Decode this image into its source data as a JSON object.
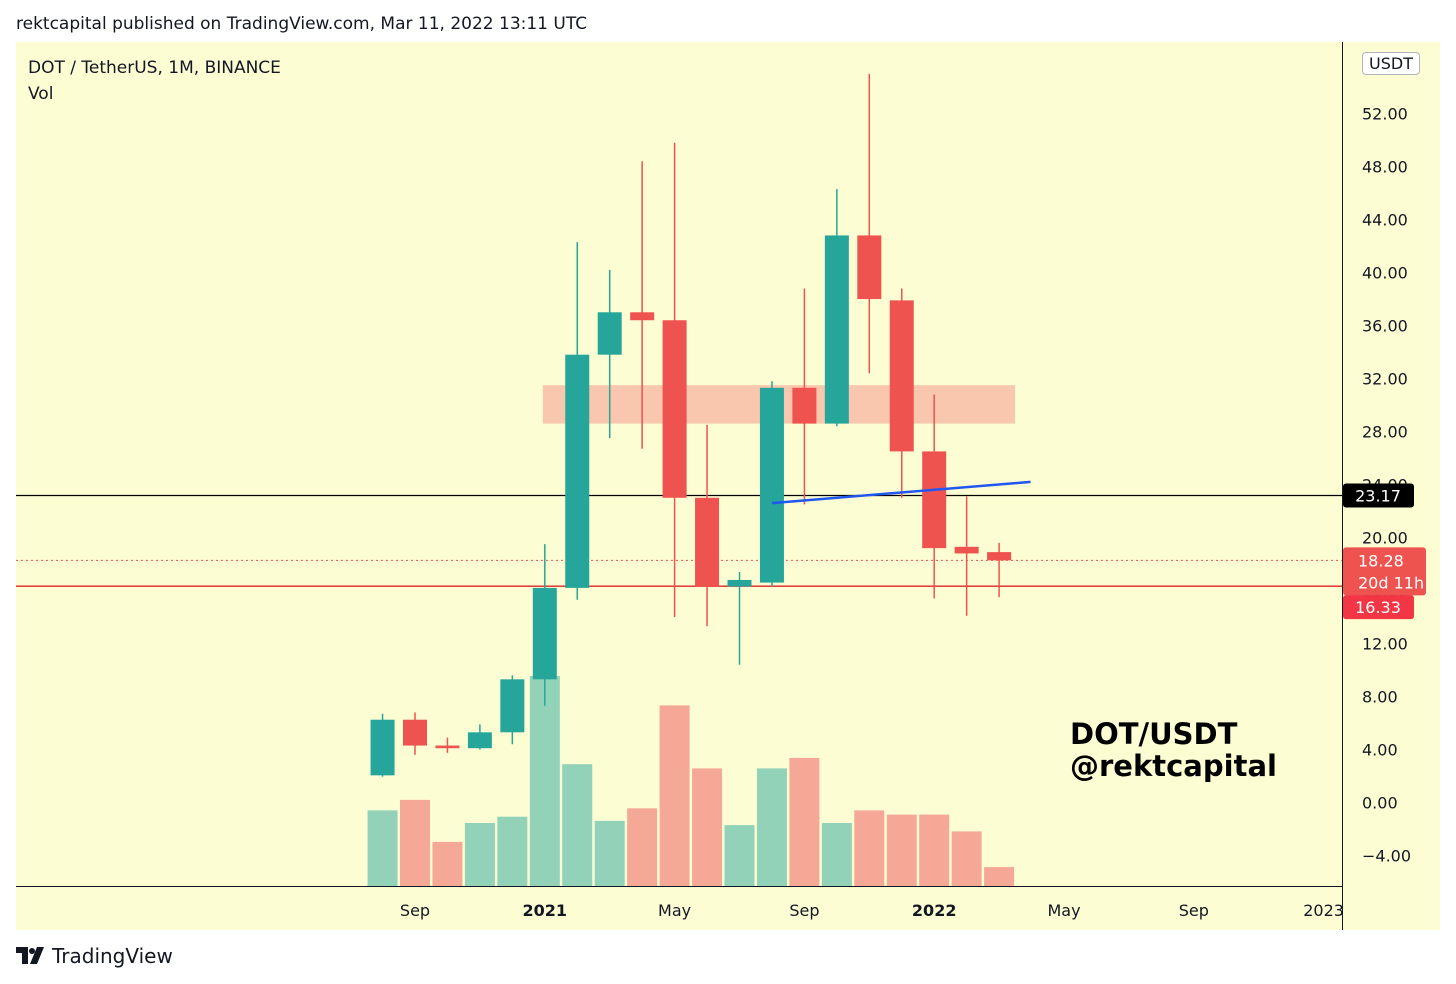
{
  "header": {
    "published": "rektcapital published on TradingView.com, Mar 11, 2022 13:11 UTC"
  },
  "legend": {
    "symbol": "DOT / TetherUS, 1M, BINANCE",
    "volume": "Vol"
  },
  "watermark": {
    "line1": "DOT/USDT",
    "line2": "@rektcapital"
  },
  "currency": "USDT",
  "footer": {
    "brand": "TradingView"
  },
  "colors": {
    "background": "#fdfdd4",
    "up": "#26a69a",
    "down": "#ef5350",
    "up_volume": "#91d2b9",
    "down_volume": "#f5a895",
    "zone": "#f9c6ae",
    "trendline": "#2057f0",
    "level_line": "#000000",
    "support_line": "#e0232a"
  },
  "chart_data": {
    "type": "candlestick",
    "title": "DOT / TetherUS, 1M, BINANCE",
    "y_axis": {
      "ticks": [
        "−4.00",
        "0.00",
        "4.00",
        "8.00",
        "12.00",
        "16.00",
        "20.00",
        "24.00",
        "28.00",
        "32.00",
        "36.00",
        "40.00",
        "44.00",
        "48.00",
        "52.00"
      ],
      "range": [
        -6.3,
        57.4
      ],
      "position": "right"
    },
    "x_axis": {
      "labels": [
        {
          "text": "Sep",
          "month": "2020-09",
          "bold": false
        },
        {
          "text": "2021",
          "month": "2021-01",
          "bold": true
        },
        {
          "text": "May",
          "month": "2021-05",
          "bold": false
        },
        {
          "text": "Sep",
          "month": "2021-09",
          "bold": false
        },
        {
          "text": "2022",
          "month": "2022-01",
          "bold": true
        },
        {
          "text": "May",
          "month": "2022-05",
          "bold": false
        },
        {
          "text": "Sep",
          "month": "2022-09",
          "bold": false
        },
        {
          "text": "2023",
          "month": "2023-01",
          "bold": false
        }
      ]
    },
    "candles": [
      {
        "month": "2020-08",
        "open": 2.05,
        "high": 6.7,
        "low": 1.95,
        "close": 6.25
      },
      {
        "month": "2020-09",
        "open": 6.25,
        "high": 6.8,
        "low": 3.6,
        "close": 4.3
      },
      {
        "month": "2020-10",
        "open": 4.3,
        "high": 4.9,
        "low": 3.75,
        "close": 4.1
      },
      {
        "month": "2020-11",
        "open": 4.1,
        "high": 5.9,
        "low": 4.0,
        "close": 5.3
      },
      {
        "month": "2020-12",
        "open": 5.3,
        "high": 9.6,
        "low": 4.4,
        "close": 9.3
      },
      {
        "month": "2021-01",
        "open": 9.3,
        "high": 19.5,
        "low": 7.3,
        "close": 16.2
      },
      {
        "month": "2021-02",
        "open": 16.2,
        "high": 42.3,
        "low": 15.3,
        "close": 33.8
      },
      {
        "month": "2021-03",
        "open": 33.8,
        "high": 40.2,
        "low": 27.5,
        "close": 37.0
      },
      {
        "month": "2021-04",
        "open": 37.0,
        "high": 48.4,
        "low": 26.7,
        "close": 36.4
      },
      {
        "month": "2021-05",
        "open": 36.4,
        "high": 49.8,
        "low": 14.0,
        "close": 23.0
      },
      {
        "month": "2021-06",
        "open": 23.0,
        "high": 28.5,
        "low": 13.3,
        "close": 16.3
      },
      {
        "month": "2021-07",
        "open": 16.3,
        "high": 17.4,
        "low": 10.4,
        "close": 16.8
      },
      {
        "month": "2021-08",
        "open": 16.6,
        "high": 31.8,
        "low": 16.3,
        "close": 31.3
      },
      {
        "month": "2021-09",
        "open": 31.3,
        "high": 38.8,
        "low": 22.5,
        "close": 28.6
      },
      {
        "month": "2021-10",
        "open": 28.6,
        "high": 46.3,
        "low": 28.4,
        "close": 42.8
      },
      {
        "month": "2021-11",
        "open": 42.8,
        "high": 55.0,
        "low": 32.4,
        "close": 38.0
      },
      {
        "month": "2021-12",
        "open": 37.9,
        "high": 38.8,
        "low": 23.0,
        "close": 26.5
      },
      {
        "month": "2022-01",
        "open": 26.5,
        "high": 30.8,
        "low": 15.4,
        "close": 19.2
      },
      {
        "month": "2022-02",
        "open": 19.3,
        "high": 23.1,
        "low": 14.1,
        "close": 18.8
      },
      {
        "month": "2022-03",
        "open": 18.9,
        "high": 19.6,
        "low": 15.5,
        "close": 18.28
      }
    ],
    "volume": {
      "visible_scale": false,
      "relative_values": [
        0.36,
        0.41,
        0.21,
        0.3,
        0.33,
        1.0,
        0.58,
        0.31,
        0.37,
        0.86,
        0.56,
        0.29,
        0.56,
        0.61,
        0.3,
        0.36,
        0.34,
        0.34,
        0.26,
        0.09
      ]
    },
    "price_labels": [
      {
        "text": "23.17",
        "value": 23.17,
        "kind": "horizontal-level"
      },
      {
        "text": "18.28",
        "value": 18.28,
        "kind": "last-price"
      },
      {
        "text": "20d 11h",
        "value": 18.28,
        "kind": "countdown"
      },
      {
        "text": "16.33",
        "value": 16.33,
        "kind": "support-level"
      }
    ],
    "annotations": {
      "zone": {
        "from_month": "2021-01",
        "to_month": "2022-03",
        "low": 28.6,
        "high": 31.5
      },
      "trendline": {
        "from_month": "2021-08",
        "from_value": 22.6,
        "to_month": "2022-04",
        "to_value": 24.2
      },
      "horizontal_level": 23.17,
      "support_level": 16.33
    }
  }
}
